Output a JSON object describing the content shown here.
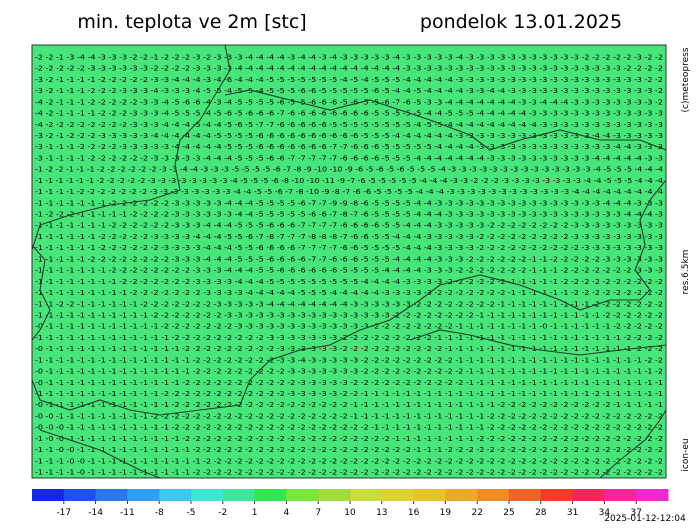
{
  "header": {
    "title": "min. teplota ve 2m [stc]",
    "date": "pondelok 13.01.2025"
  },
  "labels": {
    "copyright": "(c)meteopress",
    "resolution": "res.6.5km",
    "model": "icon-eu",
    "timestamp": "2025-01-12-12:04"
  },
  "map": {
    "background": "#46e67a",
    "rows": [
      "-2 -2 -1 -3 -4 -4 -3 -3 -3 -2 -2 -1 -2 -2 -2 -3 -2 -3 -3 -3 -4 -4 -4 -4 -3 -4 -4 -3 -4 -3 -3 -3 -3 -3 -4 -3 -3 -3 -3 -3 -4 -3 -3 -3 -3 -3 -3 -3 -3 -3 -3 -3 -2 -2 -2 -2 -2 -3 -2 -2",
      "-2 -2 -2 -2 -2 -3 -3 -3 -3 -3 -3 -2 -2 -2 -2 -3 -3 -3 -3 -4 -4 -4 -4 -4 -4 -4 -4 -4 -4 -4 -4 -4 -4 -4 -4 -3 -3 -3 -3 -3 -3 -3 -3 -3 -3 -3 -3 -3 -3 -3 -3 -3 -3 -3 -3 -3 -2 -2 -2 -2",
      "-3 -2 -1 -1 -1 -1 -2 -2 -2 -2 -2 -3 -3 -4 -4 -4 -3 -4 -6 -4 -4 -4 -5 -5 -5 -5 -5 -5 -5 -4 -5 -4 -5 -5 -5 -4 -4 -4 -4 -4 -3 -3 -3 -3 -3 -3 -3 -3 -3 -3 -3 -3 -3 -3 -3 -3 -3 -3 -2 -2",
      "-3 -2 -1 -1 -1 -2 -2 -2 -3 -3 -3 -4 -3 -3 -3 -4 -5 -5 -4 -5 -5 -4 -5 -5 -5 -6 -6 -5 -5 -5 -5 -5 -6 -5 -4 -4 -5 -4 -4 -4 -4 -3 -3 -4 -4 -3 -3 -3 -3 -3 -3 -3 -3 -3 -3 -3 -3 -3 -3 -2",
      "-4 -2 -1 -1 -1 -2 -2 -2 -2 -2 -3 -3 -4 -5 -6 -6 -4 -3 -4 -5 -5 -5 -5 -6 -5 -5 -6 -6 -6 -5 -6 -5 -5 -6 -7 -6 -5 -3 -3 -4 -4 -4 -4 -4 -4 -4 -3 -3 -4 -4 -4 -3 -3 -3 -3 -3 -3 -3 -3 -2",
      "-4 -2 -1 -1 -1 -1 -2 -2 -2 -3 -3 -3 -4 -5 -5 -5 -4 -5 -6 -5 -6 -6 -6 -7 -6 -6 -6 -6 -6 -6 -6 -6 -5 -5 -5 -5 -5 -4 -4 -5 -5 -5 -4 -4 -4 -4 -4 -3 -3 -3 -3 -3 -3 -3 -3 -3 -3 -3 -3 -3",
      "-4 -2 -2 -2 -2 -2 -2 -2 -2 -3 -3 -3 -4 -4 -4 -5 -4 -4 -5 -6 -5 -7 -7 -6 -6 -6 -6 -6 -5 -5 -5 -5 -5 -5 -5 -5 -4 -5 -5 -4 -4 -4 -4 -4 -4 -4 -4 -4 -3 -3 -3 -3 -3 -3 -3 -3 -3 -3 -3 -3",
      "-3 -2 -1 -2 -2 -2 -3 -3 -3 -3 -3 -4 -4 -4 -4 -4 -4 -5 -5 -5 -5 -6 -6 -6 -6 -6 -6 -6 -6 -6 -6 -5 -5 -5 -4 -4 -4 -4 -4 -4 -3 -3 -3 -3 -3 -3 -3 -3 -3 -3 -3 -3 -3 -4 -4 -3 -3 -3 -3 -3",
      "-3 -1 -1 -1 -2 -2 -2 -2 -3 -3 -3 -3 -3 -4 -4 -4 -4 -4 -5 -5 -5 -6 -6 -6 -6 -6 -6 -6 -7 -7 -6 -6 -6 -5 -5 -5 -5 -5 -4 -4 -4 -4 -3 -3 -3 -3 -3 -3 -3 -3 -3 -3 -3 -3 -3 -4 -4 -3 -3 -3",
      "-3 -1 -1 -1 -1 -2 -2 -2 -2 -2 -2 -3 -3 -3 -3 -3 -4 -4 -4 -5 -5 -5 -6 -6 -7 -7 -7 -7 -7 -6 -6 -6 -6 -5 -5 -5 -4 -4 -4 -4 -4 -4 -4 -3 -3 -3 -3 -3 -3 -3 -3 -3 -3 -4 -4 -4 -4 -4 -3 -3",
      "-1 -2 -2 -1 -1 -1 -2 -2 -2 -2 -2 -2 -3 -3 -4 -4 -3 -3 -3 -5 -5 -5 -5 -6 -7 -8 -9 -10 -10 -9 -6 -5 -6 -5 -6 -5 -5 -5 -4 -3 -3 -3 -3 -3 -3 -3 -3 -3 -3 -3 -3 -3 -3 -4 -5 -5 -5 -4 -4 -4",
      "-1 -1 -1 -1 -1 -1 -2 -2 -2 -2 -2 -3 -3 -3 -3 -3 -3 -3 -3 -4 -5 -5 -5 -6 -8 -10 -10 -11 -9 -7 -6 -5 -5 -5 -5 -5 -4 -4 -4 -3 -3 -2 -2 -2 -3 -3 -3 -3 -3 -3 -3 -3 -4 -4 -5 -5 -5 -4 -4 -4",
      "-1 -1 -1 -1 -2 -2 -2 -2 -2 -2 -2 -3 -3 -3 -3 -3 -3 -3 -3 -4 -4 -5 -5 -6 -7 -8 -10 -9 -8 -7 -6 -6 -5 -5 -5 -5 -4 -4 -4 -3 -3 -3 -3 -3 -3 -3 -3 -3 -3 -3 -3 -4 -4 -4 -4 -4 -4 -4 -4 -4",
      "-1 -1 -1 -1 -1 -1 -1 -2 -2 -2 -2 -2 -2 -3 -3 -3 -3 -3 -4 -4 -4 -5 -5 -5 -5 -6 -7 -7 -9 -9 -8 -6 -5 -5 -5 -5 -4 -4 -3 -3 -3 -3 -3 -3 -3 -3 -3 -3 -3 -3 -3 -3 -3 -3 -4 -4 -4 -3 -3 -3",
      "-1 -2 -2 -2 -1 -1 -1 -1 -1 -2 -2 -2 -2 -3 -3 -3 -3 -3 -3 -4 -4 -5 -5 -5 -5 -5 -6 -6 -7 -8 -7 -6 -5 -5 -5 -5 -4 -4 -4 -3 -3 -3 -3 -3 -3 -3 -3 -3 -3 -3 -3 -3 -3 -3 -3 -3 -4 -4 -4 -3",
      "-1 -1 -1 -1 -1 -1 -1 -2 -2 -2 -2 -2 -2 -3 -3 -3 -4 -4 -4 -5 -5 -5 -6 -6 -6 -7 -7 -7 -7 -6 -6 -6 -6 -5 -5 -4 -4 -4 -3 -3 -3 -3 -3 -2 -2 -2 -2 -2 -2 -2 -2 -3 -3 -3 -3 -3 -3 -3 -3 -3",
      "-1 -1 -1 -1 -1 -1 -2 -2 -2 -2 -2 -3 -3 -3 -3 -4 -4 -4 -5 -5 -6 -7 -8 -7 -7 -7 -8 -8 -8 -7 -6 -6 -5 -5 -4 -4 -4 -3 -3 -3 -3 -3 -2 -2 -2 -2 -2 -2 -2 -2 -2 -3 -3 -3 -3 -3 -3 -3 -3 -3",
      "-1 -1 -1 -1 -1 -1 -2 -2 -2 -2 -2 -2 -3 -3 -3 -3 -4 -4 -4 -5 -5 -6 -6 -6 -6 -7 -7 -7 -7 -6 -6 -5 -5 -5 -5 -4 -4 -4 -3 -3 -3 -3 -2 -2 -2 -2 -2 -2 -2 -2 -2 -2 -3 -3 -3 -3 -3 -3 -3 -3",
      "-1 -1 -1 -1 -1 -2 -2 -2 -2 -2 -2 -2 -2 -3 -3 -3 -4 -4 -4 -5 -5 -5 -6 -6 -6 -6 -7 -7 -6 -6 -6 -5 -5 -5 -4 -4 -4 -4 -3 -3 -3 -2 -2 -2 -2 -2 -2 -1 -1 -2 -2 -2 -2 -2 -3 -3 -3 -3 -3 -3",
      "-1 -1 -1 -1 -1 -1 -1 -2 -2 -2 -2 -2 -2 -2 -2 -3 -3 -3 -4 -4 -4 -5 -5 -6 -6 -6 -6 -6 -6 -5 -5 -5 -5 -4 -4 -4 -4 -3 -3 -3 -2 -2 -2 -2 -2 -2 -2 -1 -1 -1 -2 -2 -2 -2 -2 -2 -2 -3 -3 -3",
      "-1 -1 -1 -1 -1 -1 -1 -1 -2 -2 -2 -2 -2 -2 -2 -3 -3 -3 -3 -4 -4 -4 -5 -5 -5 -5 -5 -5 -5 -5 -5 -4 -4 -4 -4 -3 -3 -3 -3 -2 -2 -2 -2 -2 -2 -1 -1 -1 -1 -1 -2 -2 -2 -2 -2 -2 -2 -2 -2 -2",
      "-1 -1 -1 -1 -1 -1 -1 -1 -1 -2 -2 -2 -2 -2 -2 -2 -3 -3 -3 -3 -4 -4 -4 -4 -4 -5 -5 -5 -4 -4 -4 -4 -4 -3 -3 -3 -3 -3 -2 -2 -2 -2 -2 -2 -2 -1 -1 -1 -1 -1 -1 -2 -2 -2 -2 -2 -2 -2 -2 -2",
      "-1 -1 -2 -2 -1 -1 -1 -1 -1 -1 -2 -2 -2 -2 -2 -2 -2 -3 -3 -3 -3 -3 -4 -4 -4 -4 -4 -4 -4 -4 -3 -3 -3 -3 -3 -3 -2 -2 -2 -2 -2 -2 -2 -2 -1 -1 -1 -1 -1 -1 -1 -1 -1 -2 -2 -2 -2 -2 -2 -2",
      "-1 -1 -1 -1 -1 -1 -1 -1 -1 -1 -1 -2 -2 -2 -2 -2 -2 -2 -3 -3 -3 -3 -3 -3 -3 -3 -3 -3 -3 -3 -3 -3 -3 -3 -2 -2 -2 -2 -2 -2 -2 -2 -1 -1 -1 -1 -1 -1 -1 -1 -1 -1 -1 -1 -2 -2 -2 -2 -2 -2",
      "-0 -1 -1 -1 -1 -1 -1 -1 -1 -1 -1 -1 -2 -2 -2 -2 -2 -2 -2 -3 -3 -3 -3 -3 -3 -3 -3 -3 -3 -3 -3 -3 -2 -2 -2 -2 -2 -2 -2 -2 -1 -1 -1 -1 -1 -1 -1 -1 -0 -1 -1 -1 -1 -1 -1 -2 -2 -2 -2 -2",
      "-1 -1 -1 -1 -1 -1 -1 -1 -1 -1 -1 -1 -1 -2 -2 -2 -2 -2 -2 -2 -2 -2 -3 -3 -3 -3 -3 -3 -3 -2 -2 -2 -2 -2 -2 -2 -2 -2 -1 -1 -1 -1 -1 -1 -1 -1 -1 -1 -1 -1 -1 -1 -1 -1 -1 -1 -2 -2 -2 -2",
      "-0 -1 -1 -1 -1 -1 -1 -1 -1 -1 -1 -1 -1 -1 -2 -2 -2 -2 -2 -2 -2 -2 -2 -3 -3 -3 -3 -3 -3 -2 -2 -2 -2 -2 -2 -2 -2 -2 -2 -1 -1 -1 -1 -1 -1 -1 -1 -1 -1 -1 -1 -1 -1 -1 -1 -1 -1 -2 -2 -2",
      "-1 -1 -1 -1 -1 -1 -1 -1 -1 -1 -1 -1 -1 -1 -1 -2 -2 -2 -2 -2 -2 -2 -2 -3 -3 -4 -3 -3 -3 -3 -3 -2 -2 -2 -2 -2 -2 -2 -2 -2 -1 -1 -1 -1 -1 -1 -1 -1 -1 -1 -1 -1 -1 -1 -1 -1 -1 -1 -2 -2",
      "-0 -1 -1 -1 -1 -1 -1 -1 -1 -1 -1 -1 -1 -1 -1 -2 -2 -2 -2 -2 -2 -2 -2 -2 -3 -3 -3 -3 -3 -3 -3 -2 -2 -2 -2 -2 -2 -2 -2 -2 -2 -1 -1 -1 -1 -1 -1 -1 -1 -1 -1 -1 -1 -1 -1 -1 -1 -1 -1 -2",
      "-0 -1 -1 -1 -1 -1 -1 -1 -1 -1 -1 -1 -1 -1 -2 -2 -2 -2 -2 -2 -2 -2 -2 -2 -2 -3 -3 -3 -3 -3 -2 -2 -2 -2 -2 -2 -2 -2 -2 -2 -2 -1 -1 -1 -1 -1 -1 -1 -1 -1 -1 -1 -1 -1 -1 -1 -1 -1 -1 -1",
      "-1 -1 -1 -1 -1 -1 -1 -1 -1 -1 -1 -1 -2 -2 -2 -2 -2 -2 -2 -2 -2 -2 -2 -2 -3 -3 -3 -3 -3 -2 -2 -1 -1 -1 -1 -1 -1 -1 -1 -1 -1 -1 -1 -1 -1 -1 -1 -1 -1 -1 -1 -1 -1 -2 -1 -1 -1 -1 -1 -1",
      "-0 -1 -1 -1 -1 -1 -1 -1 -1 -1 -1 -1 -1 -2 -2 -2 -2 -2 -2 -2 -2 -2 -2 -2 -2 -2 -2 -2 -2 -2 -1 -1 -1 -1 -1 -1 -1 -1 -1 -1 -1 -1 -1 -1 -2 -2 -2 -2 -2 -2 -2 -2 -2 -2 -2 -1 -1 -1 -1 -1",
      "-0 -0 -1 -1 -1 -1 -1 -1 -1 -1 -1 -2 -2 -2 -2 -2 -2 -2 -2 -2 -2 -2 -2 -2 -2 -2 -2 -2 -2 -2 -1 -1 -1 -1 -1 -1 -1 -1 -1 -1 -1 -1 -1 -2 -2 -2 -2 -2 -2 -2 -2 -2 -2 -2 -2 -2 -2 -2 -2 -2",
      "-0 -0 -0 -1 -1 -1 -1 -1 -1 -1 -1 -1 -1 -2 -2 -2 -2 -2 -2 -2 -2 -2 -2 -2 -2 -2 -2 -2 -2 -2 -2 -2 -1 -1 -1 -1 -1 -1 -1 -1 -1 -1 -1 -2 -2 -2 -2 -2 -2 -2 -2 -2 -2 -2 -2 -2 -2 -2 -2 -2",
      "-1 -0 -0 -1 -1 -1 -1 -1 -1 -1 -1 -1 -1 -1 -2 -2 -2 -2 -2 -2 -2 -2 -2 -2 -2 -2 -2 -2 -2 -2 -2 -2 -2 -2 -1 -1 -1 -1 -1 -1 -1 -1 -2 -2 -2 -2 -2 -2 -2 -2 -2 -2 -2 -2 -2 -2 -2 -2 -2 -2",
      "-1 -1 -0 -0 -1 -1 -1 -1 -1 -1 -1 -1 -1 -1 -1 -2 -2 -2 -2 -2 -2 -2 -2 -2 -2 -2 -2 -2 -2 -2 -2 -2 -2 -2 -2 -2 -1 -1 -1 -2 -2 -2 -2 -2 -2 -2 -2 -2 -2 -2 -2 -2 -2 -2 -2 -2 -2 -2 -2 -2",
      "-1 -1 -1 -0 -0 -1 -1 -1 -1 -1 -1 -1 -1 -1 -1 -1 -2 -2 -2 -2 -2 -2 -2 -2 -2 -2 -2 -2 -2 -2 -2 -2 -2 -2 -2 -2 -2 -2 -2 -2 -2 -2 -2 -2 -2 -2 -2 -2 -2 -2 -2 -2 -2 -2 -2 -2 -2 -2 -2 -2",
      "-1 -1 -1 -1 -0 -1 -1 -1 -1 -1 -1 -1 -1 -1 -1 -2 -2 -2 -2 -2 -2 -2 -2 -2 -2 -2 -2 -2 -2 -2 -2 -2 -2 -2 -2 -2 -2 -2 -2 -2 -2 -2 -2 -2 -2 -2 -2 -2 -2 -2 -2 -2 -2 -2 -2 -2 -2 -2 -2 -2"
    ]
  },
  "colorbar": {
    "range": [
      -20,
      40
    ],
    "ticks": [
      -17,
      -14,
      -11,
      -8,
      -5,
      -2,
      1,
      4,
      7,
      10,
      13,
      16,
      19,
      22,
      25,
      28,
      31,
      34,
      37
    ],
    "colors": [
      "#1428dc",
      "#1e50f0",
      "#2878f0",
      "#32a0f0",
      "#3cc8f0",
      "#3ce6d2",
      "#3ce69b",
      "#32e650",
      "#78e63c",
      "#a0dc3c",
      "#c8dc3c",
      "#dcd232",
      "#e6c328",
      "#ebaa28",
      "#f08c28",
      "#f06428",
      "#f03c28",
      "#f0285a",
      "#f0289b",
      "#f028d2"
    ]
  }
}
